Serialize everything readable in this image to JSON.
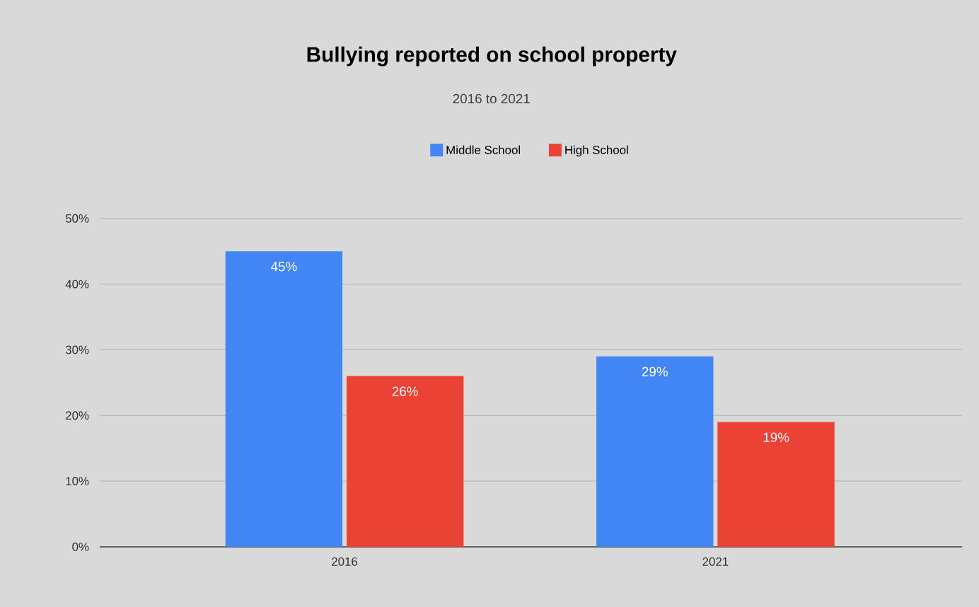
{
  "chart_data": {
    "type": "bar",
    "title": "Bullying reported on school property",
    "subtitle": "2016 to 2021",
    "categories": [
      "2016",
      "2021"
    ],
    "series": [
      {
        "name": "Middle School",
        "color": "#4285f4",
        "values": [
          45,
          29
        ],
        "value_labels": [
          "45%",
          "29%"
        ]
      },
      {
        "name": "High School",
        "color": "#ea4335",
        "values": [
          26,
          19
        ],
        "value_labels": [
          "26%",
          "19%"
        ]
      }
    ],
    "ylim": [
      0,
      50
    ],
    "yticks": [
      {
        "value": 0,
        "label": "0%"
      },
      {
        "value": 10,
        "label": "10%"
      },
      {
        "value": 20,
        "label": "20%"
      },
      {
        "value": 30,
        "label": "30%"
      },
      {
        "value": 40,
        "label": "40%"
      },
      {
        "value": 50,
        "label": "50%"
      }
    ],
    "grid": "y",
    "legend": "top"
  }
}
